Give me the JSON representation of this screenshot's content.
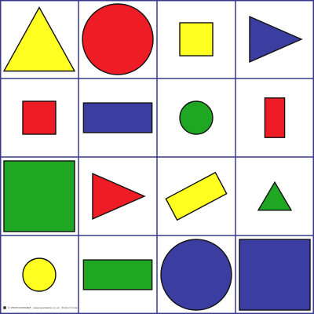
{
  "board": {
    "rows": 4,
    "cols": 4,
    "grid_color": "#3a3a8c",
    "background": "#ffffff"
  },
  "colors": {
    "yellow": "#ffff22",
    "red": "#ee1c24",
    "blue": "#3b3ea0",
    "green": "#1fa622",
    "outline": "#111111"
  },
  "cells": [
    {
      "row": 0,
      "col": 0,
      "shape": "triangle",
      "color": "yellow",
      "size": "large"
    },
    {
      "row": 0,
      "col": 1,
      "shape": "circle",
      "color": "red",
      "size": "large"
    },
    {
      "row": 0,
      "col": 2,
      "shape": "square",
      "color": "yellow",
      "size": "small"
    },
    {
      "row": 0,
      "col": 3,
      "shape": "triangle",
      "color": "blue",
      "size": "medium"
    },
    {
      "row": 1,
      "col": 0,
      "shape": "square",
      "color": "red",
      "size": "small"
    },
    {
      "row": 1,
      "col": 1,
      "shape": "rectangle",
      "color": "blue",
      "size": "large"
    },
    {
      "row": 1,
      "col": 2,
      "shape": "circle",
      "color": "green",
      "size": "small"
    },
    {
      "row": 1,
      "col": 3,
      "shape": "rectangle",
      "color": "red",
      "size": "small"
    },
    {
      "row": 2,
      "col": 0,
      "shape": "square",
      "color": "green",
      "size": "large"
    },
    {
      "row": 2,
      "col": 1,
      "shape": "triangle",
      "color": "red",
      "size": "medium"
    },
    {
      "row": 2,
      "col": 2,
      "shape": "rectangle",
      "color": "yellow",
      "size": "medium"
    },
    {
      "row": 2,
      "col": 3,
      "shape": "triangle",
      "color": "green",
      "size": "small"
    },
    {
      "row": 3,
      "col": 0,
      "shape": "circle",
      "color": "yellow",
      "size": "small"
    },
    {
      "row": 3,
      "col": 1,
      "shape": "rectangle",
      "color": "green",
      "size": "large"
    },
    {
      "row": 3,
      "col": 2,
      "shape": "circle",
      "color": "blue",
      "size": "large"
    },
    {
      "row": 3,
      "col": 3,
      "shape": "square",
      "color": "blue",
      "size": "large"
    }
  ],
  "footer": {
    "text": "© PHOTOCOPIABLE · www.sparklebox.co.uk · Product Code"
  }
}
